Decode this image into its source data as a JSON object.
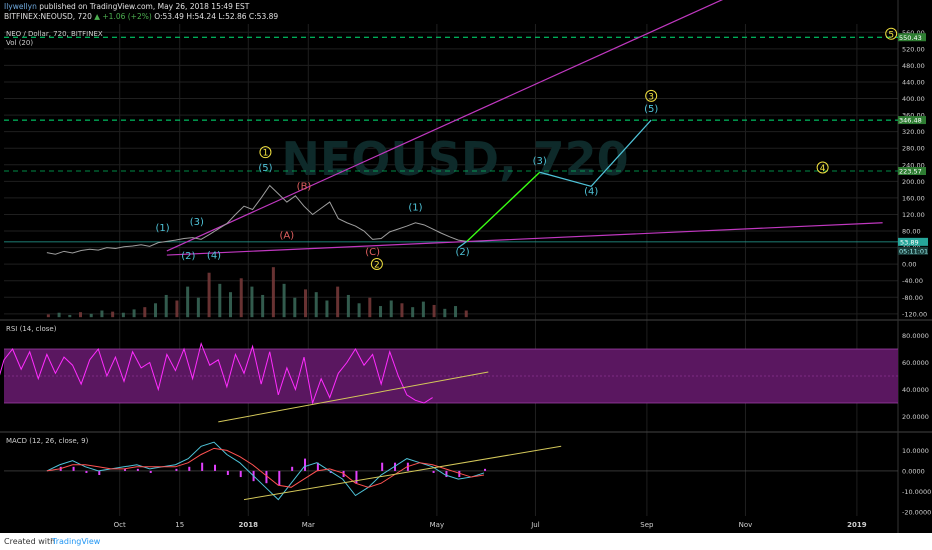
{
  "header": {
    "author": "Ilywellyn",
    "published": "published on TradingView.com, May 26, 2018 15:49 EST",
    "symbol_line": "BITFINEX:NEOUSD, 720",
    "change": "▲ +1.06 (+2%)",
    "ohlc": "O:53.49 H:54.24 L:52.86 C:53.89"
  },
  "panes": {
    "main_title": "NEO / Dollar, 720, BITFINEX",
    "vol_title": "Vol (20)",
    "rsi_title": "RSI (14, close)",
    "macd_title": "MACD (12, 26, close, 9)"
  },
  "footer": {
    "created": "Created with",
    "brand": "TradingView"
  },
  "colors": {
    "price_line": "#9e9e9e",
    "purple_line": "#c038c0",
    "green_arrow": "#39ff14",
    "cyan_path": "#4fc3d8",
    "dash_green": "#00e676",
    "yellow_trend": "#d4c85a",
    "rsi_line": "#ff2cff",
    "rsi_band": "#5a1760",
    "macd_line": "#4fc3d8",
    "signal_line": "#ff5252",
    "price_tag_bg": "#26a69a",
    "level_tag_bg": "#2e7d32"
  },
  "chart_data": [
    {
      "type": "line",
      "name_pane": "price",
      "yaxis_ticks": [
        "560.00",
        "520.00",
        "480.00",
        "440.00",
        "400.00",
        "360.00",
        "320.00",
        "280.00",
        "240.00",
        "200.00",
        "160.00",
        "120.00",
        "80.00",
        "40.00",
        "0.00",
        "-40.00",
        "-80.00",
        "-120.00"
      ],
      "yaxis_values": [
        560,
        520,
        480,
        440,
        400,
        360,
        320,
        280,
        240,
        200,
        160,
        120,
        80,
        40,
        0,
        -40,
        -80,
        -120
      ],
      "ylim": [
        -130,
        580
      ],
      "x_ticks": [
        "Oct",
        "15",
        "2018",
        "Mar",
        "May",
        "Jul",
        "Sep",
        "Nov",
        "2019"
      ],
      "x_tick_days": [
        17,
        31,
        47,
        61,
        91,
        114,
        140,
        163,
        189
      ],
      "xlim": [
        0,
        195
      ],
      "price_series": [
        [
          0,
          28
        ],
        [
          2,
          24
        ],
        [
          4,
          31
        ],
        [
          6,
          27
        ],
        [
          8,
          33
        ],
        [
          10,
          36
        ],
        [
          12,
          34
        ],
        [
          14,
          40
        ],
        [
          16,
          38
        ],
        [
          18,
          42
        ],
        [
          20,
          44
        ],
        [
          22,
          47
        ],
        [
          24,
          43
        ],
        [
          26,
          52
        ],
        [
          28,
          55
        ],
        [
          30,
          58
        ],
        [
          32,
          62
        ],
        [
          34,
          64
        ],
        [
          36,
          60
        ],
        [
          38,
          72
        ],
        [
          40,
          85
        ],
        [
          42,
          98
        ],
        [
          44,
          120
        ],
        [
          46,
          140
        ],
        [
          48,
          132
        ],
        [
          50,
          160
        ],
        [
          52,
          190
        ],
        [
          54,
          170
        ],
        [
          56,
          150
        ],
        [
          58,
          165
        ],
        [
          60,
          140
        ],
        [
          62,
          120
        ],
        [
          64,
          135
        ],
        [
          66,
          150
        ],
        [
          68,
          110
        ],
        [
          70,
          100
        ],
        [
          72,
          92
        ],
        [
          74,
          80
        ],
        [
          76,
          60
        ],
        [
          78,
          62
        ],
        [
          80,
          78
        ],
        [
          82,
          85
        ],
        [
          84,
          92
        ],
        [
          86,
          100
        ],
        [
          88,
          95
        ],
        [
          90,
          85
        ],
        [
          92,
          75
        ],
        [
          94,
          66
        ],
        [
          96,
          58
        ],
        [
          98,
          55
        ]
      ],
      "volume_values": [
        5,
        8,
        4,
        9,
        6,
        12,
        10,
        8,
        14,
        18,
        25,
        40,
        30,
        55,
        35,
        80,
        60,
        45,
        70,
        55,
        40,
        90,
        60,
        35,
        50,
        45,
        30,
        55,
        40,
        25,
        35,
        20,
        30,
        25,
        18,
        28,
        22,
        15,
        20,
        12
      ],
      "price_tag": "53.89",
      "countdown_tag": "05:11:01",
      "levels": [
        {
          "value": 548,
          "label": "550.43"
        },
        {
          "value": 348,
          "label": "346.48"
        },
        {
          "value": 225,
          "label": "223.57"
        }
      ],
      "upper_channel": [
        [
          28,
          32
        ],
        [
          160,
          650
        ]
      ],
      "lower_channel": [
        [
          28,
          22
        ],
        [
          195,
          100
        ]
      ],
      "projection_green": [
        [
          98,
          55
        ],
        [
          115,
          222
        ]
      ],
      "projection_cyan": [
        [
          115,
          222
        ],
        [
          127,
          188
        ],
        [
          141,
          348
        ]
      ],
      "projection_cyan_start": [
        [
          96,
          40
        ],
        [
          98,
          55
        ]
      ],
      "wave_labels": [
        {
          "text": "(1)",
          "x": 27,
          "y": 80,
          "color": "#4fc3d8"
        },
        {
          "text": "(2)",
          "x": 33,
          "y": 12,
          "color": "#4fc3d8"
        },
        {
          "text": "(3)",
          "x": 35,
          "y": 94,
          "color": "#4fc3d8"
        },
        {
          "text": "(4)",
          "x": 39,
          "y": 14,
          "color": "#4fc3d8"
        },
        {
          "text": "(5)",
          "x": 51,
          "y": 225,
          "color": "#4fc3d8"
        },
        {
          "text": "(A)",
          "x": 56,
          "y": 62,
          "color": "#e06060"
        },
        {
          "text": "(B)",
          "x": 60,
          "y": 180,
          "color": "#e06060"
        },
        {
          "text": "(C)",
          "x": 76,
          "y": 22,
          "color": "#e06060"
        },
        {
          "text": "(1)",
          "x": 86,
          "y": 130,
          "color": "#4fc3d8"
        },
        {
          "text": "(2)",
          "x": 97,
          "y": 22,
          "color": "#4fc3d8"
        },
        {
          "text": "(3)",
          "x": 115,
          "y": 242,
          "color": "#4fc3d8"
        },
        {
          "text": "(4)",
          "x": 127,
          "y": 168,
          "color": "#4fc3d8"
        },
        {
          "text": "(5)",
          "x": 141,
          "y": 368,
          "color": "#4fc3d8"
        }
      ],
      "circle_labels": [
        {
          "text": "1",
          "x": 51,
          "y": 262
        },
        {
          "text": "2",
          "x": 77,
          "y": -8
        },
        {
          "text": "3",
          "x": 141,
          "y": 398
        },
        {
          "text": "4",
          "x": 181,
          "y": 225
        },
        {
          "text": "5",
          "x": 197,
          "y": 548
        }
      ],
      "watermark": "NEOUSD, 720"
    },
    {
      "type": "line",
      "name_pane": "rsi",
      "yaxis_ticks": [
        "80.0000",
        "60.0000",
        "40.0000",
        "20.0000"
      ],
      "yaxis_values": [
        80,
        60,
        40,
        20
      ],
      "ylim": [
        10,
        90
      ],
      "band": [
        30,
        70
      ],
      "values": [
        [
          0,
          18
        ],
        [
          1,
          40
        ],
        [
          2,
          62
        ],
        [
          3,
          70
        ],
        [
          4,
          55
        ],
        [
          5,
          68
        ],
        [
          6,
          48
        ],
        [
          7,
          66
        ],
        [
          8,
          52
        ],
        [
          9,
          64
        ],
        [
          10,
          58
        ],
        [
          11,
          44
        ],
        [
          12,
          62
        ],
        [
          13,
          70
        ],
        [
          14,
          50
        ],
        [
          15,
          64
        ],
        [
          16,
          46
        ],
        [
          17,
          68
        ],
        [
          18,
          56
        ],
        [
          19,
          60
        ],
        [
          20,
          40
        ],
        [
          21,
          66
        ],
        [
          22,
          54
        ],
        [
          23,
          70
        ],
        [
          24,
          48
        ],
        [
          25,
          74
        ],
        [
          26,
          58
        ],
        [
          27,
          62
        ],
        [
          28,
          42
        ],
        [
          29,
          66
        ],
        [
          30,
          52
        ],
        [
          31,
          72
        ],
        [
          32,
          44
        ],
        [
          33,
          68
        ],
        [
          34,
          36
        ],
        [
          35,
          56
        ],
        [
          36,
          40
        ],
        [
          37,
          64
        ],
        [
          38,
          30
        ],
        [
          39,
          48
        ],
        [
          40,
          34
        ],
        [
          41,
          52
        ],
        [
          42,
          60
        ],
        [
          43,
          70
        ],
        [
          44,
          58
        ],
        [
          45,
          66
        ],
        [
          46,
          44
        ],
        [
          47,
          68
        ],
        [
          48,
          50
        ],
        [
          49,
          36
        ],
        [
          50,
          32
        ],
        [
          51,
          30
        ],
        [
          52,
          34
        ]
      ],
      "trend": [
        [
          40,
          16
        ],
        [
          103,
          53
        ]
      ]
    },
    {
      "type": "line",
      "name_pane": "macd",
      "yaxis_ticks": [
        "10.0000",
        "0.0000",
        "-10.0000",
        "-20.0000"
      ],
      "yaxis_values": [
        10,
        0,
        -10,
        -20
      ],
      "ylim": [
        -22,
        18
      ],
      "macd": [
        [
          0,
          0
        ],
        [
          2,
          3
        ],
        [
          4,
          5
        ],
        [
          6,
          2
        ],
        [
          8,
          0
        ],
        [
          10,
          1
        ],
        [
          12,
          2
        ],
        [
          14,
          3
        ],
        [
          16,
          1
        ],
        [
          18,
          2
        ],
        [
          20,
          3
        ],
        [
          22,
          6
        ],
        [
          24,
          12
        ],
        [
          26,
          14
        ],
        [
          28,
          8
        ],
        [
          30,
          4
        ],
        [
          32,
          -2
        ],
        [
          34,
          -8
        ],
        [
          36,
          -14
        ],
        [
          38,
          -6
        ],
        [
          40,
          2
        ],
        [
          42,
          4
        ],
        [
          44,
          0
        ],
        [
          46,
          -4
        ],
        [
          48,
          -12
        ],
        [
          50,
          -8
        ],
        [
          52,
          -2
        ],
        [
          54,
          2
        ],
        [
          56,
          6
        ],
        [
          58,
          4
        ],
        [
          60,
          2
        ],
        [
          62,
          -2
        ],
        [
          64,
          -4
        ],
        [
          66,
          -3
        ],
        [
          68,
          -1
        ]
      ],
      "signal": [
        [
          0,
          0
        ],
        [
          2,
          1
        ],
        [
          4,
          3
        ],
        [
          6,
          3
        ],
        [
          8,
          2
        ],
        [
          10,
          1
        ],
        [
          12,
          1
        ],
        [
          14,
          2
        ],
        [
          16,
          2
        ],
        [
          18,
          2
        ],
        [
          20,
          2
        ],
        [
          22,
          4
        ],
        [
          24,
          8
        ],
        [
          26,
          11
        ],
        [
          28,
          10
        ],
        [
          30,
          7
        ],
        [
          32,
          3
        ],
        [
          34,
          -2
        ],
        [
          36,
          -7
        ],
        [
          38,
          -8
        ],
        [
          40,
          -4
        ],
        [
          42,
          0
        ],
        [
          44,
          1
        ],
        [
          46,
          -1
        ],
        [
          48,
          -6
        ],
        [
          50,
          -8
        ],
        [
          52,
          -6
        ],
        [
          54,
          -2
        ],
        [
          56,
          2
        ],
        [
          58,
          4
        ],
        [
          60,
          3
        ],
        [
          62,
          1
        ],
        [
          64,
          -1
        ],
        [
          66,
          -3
        ],
        [
          68,
          -2
        ]
      ],
      "trend": [
        [
          46,
          -14
        ],
        [
          120,
          12
        ]
      ]
    }
  ]
}
